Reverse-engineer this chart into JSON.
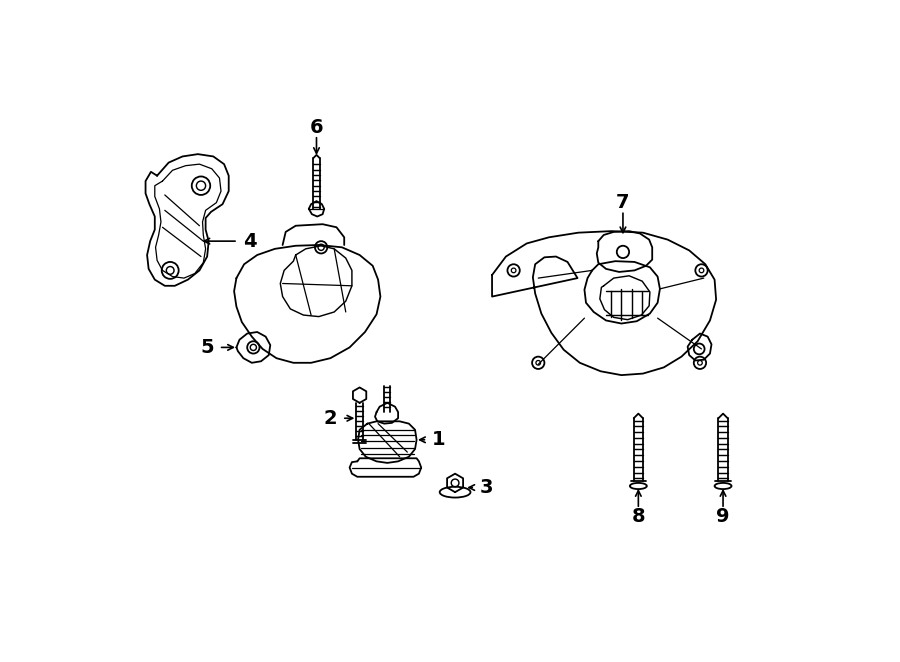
{
  "background_color": "#ffffff",
  "line_color": "#000000",
  "figsize": [
    9.0,
    6.62
  ],
  "dpi": 100,
  "label_fontsize": 14,
  "label_fontweight": "bold"
}
